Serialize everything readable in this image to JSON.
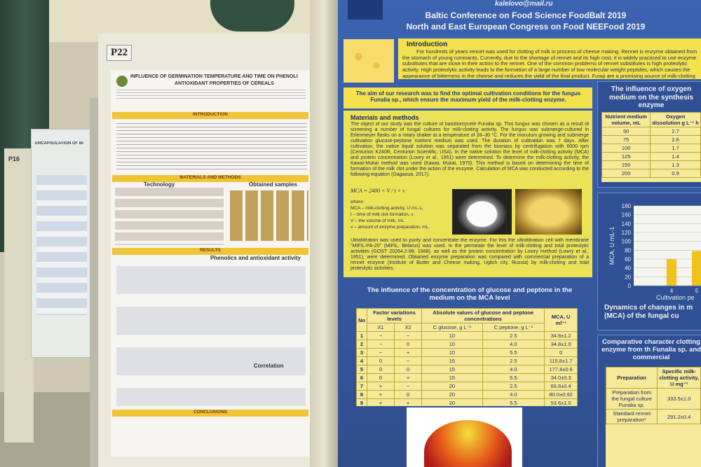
{
  "far_left_poster": {
    "label": "P16",
    "title": "ENCAPSULATION OF BI"
  },
  "left_poster": {
    "label": "P22",
    "title": "INFLUENCE OF GERMINATION TEMPERATURE AND TIME ON PHENOLI",
    "subtitle": "ANTIOXIDANT PROPERTIES OF CEREALS",
    "sections": [
      "INTRODUCTION",
      "MATERIALS AND METHODS",
      "RESULTS",
      "CONCLUSIONS"
    ],
    "subsections": [
      "Technology",
      "Obtained samples",
      "Phenolics and antioxidant activity",
      "Correlation"
    ]
  },
  "right_poster": {
    "email": "kalelovo@mail.ru",
    "conference": [
      "Baltic Conference on Food Science FoodBalt 2019",
      "North and East European Congress on Food NEEFood 2019"
    ],
    "introduction": {
      "heading": "Introduction",
      "text": "For hundreds of years rennet was used for clotting of milk in process of cheese making. Rennet is enzyme obtained from the stomach of young ruminants. Currently, due to the shortage of rennet and its high cost, it is widely practiced to use enzyme substitutes that are close in their action to the rennet. One of the common problems of rennet substitutes is high proteolytic activity. High proteolytic activity leads to the formation of a large number of low molecular weight peptides, which causes the appearance of bitterness in the cheese and reduces the yield of the final product. Fungi are a promising source of milk-clotting enzymes."
    },
    "aim": "The aim of our research was to find the optimal cultivation conditions for the fungus Funalia sp., which ensure the maximum yield of the milk-clotting enzyme.",
    "methods": {
      "heading": "Materials and methods",
      "text": "The object of our study was the culture of basidiomycete Funalia sp. This fungus was chosen as a result of screening a number of fungal cultures for milk-clotting activity. The fungus was submerge-cultured in Erlenmeyer flasks on a rotary shaker at a temperature of 28–30 °C. For the inoculum growing and submerge cultivation glucose-peptone nutrient medium was used. The duration of cultivation was 7 days. After cultivation, the native liquid solution was separated from the biomass by centrifugation with 6000 rpm (Centurion K240R, Centurion Scientific, USA). In the native solution the level of milk-clotting activity (MCA) and protein concentration (Lowry et al., 1951) were determined. To determine the milk-clotting activity, the Kawai-Mukai method was used (Kawai, Mukai, 1970). This method is based on determining the time of formation of the milk clot under the action of the enzyme. Calculation of MCA was conducted according to the following equation (Gagaoua, 2017):",
      "formula": "MCA = 2400 × V / t × v",
      "where": [
        "where:",
        "MCA – milk-clotting activity, U mL-1,",
        "t – time of milk clot formation, s",
        "V – the volume of milk, mL",
        "v – amount of enzyme preparation, mL."
      ],
      "text2": "Ultrafiltration was used to purify and concentrate the enzyme. For this the ultrafiltration cell with membrane \"MIFIL-PA-20\" (MIFIL, Belarus) was used. In the permeate the level of milk-clotting and total proteolytic activities (GOST 20264.2-88, 1988), as well as the protein concentration by Lowry method (Lowry et al., 1951), were determined. Obtained enzyme preparation was compared with commercial preparation of a rennet enzyme (Institute of Butter and Cheese making, Uglich city, Russia) by milk-clotting and total proteolytic activities."
    },
    "table1": {
      "title": "The influence of the concentration of glucose and peptone in the medium on the MCA level",
      "headers": [
        "No",
        "Factor variations levels",
        "Absolute values of glucose and peptone concentrations",
        "MCA, U ml⁻¹"
      ],
      "subheaders": [
        "X1",
        "X2",
        "C glucose, g L⁻¹",
        "C peptone, g L⁻¹"
      ],
      "rows": [
        [
          "1",
          "−",
          "−",
          "10",
          "2.5",
          "34.8±1.2"
        ],
        [
          "2",
          "−",
          "0",
          "10",
          "4.0",
          "34.8±1.0"
        ],
        [
          "3",
          "−",
          "+",
          "10",
          "5.5",
          "0"
        ],
        [
          "4",
          "0",
          "−",
          "15",
          "2.5",
          "115.8±1.7"
        ],
        [
          "5",
          "0",
          "0",
          "15",
          "4.0",
          "177.8±0.6"
        ],
        [
          "6",
          "0",
          "+",
          "15",
          "5.5",
          "34.0±0.3"
        ],
        [
          "7",
          "+",
          "−",
          "20",
          "2.5",
          "66.8±0.4"
        ],
        [
          "8",
          "+",
          "0",
          "20",
          "4.0",
          "80.0±0.92"
        ],
        [
          "9",
          "+",
          "+",
          "20",
          "5.5",
          "53.6±1.0"
        ]
      ]
    },
    "oxygen_panel": {
      "title": "The influence of oxygen medium on the synthesis enzyme",
      "headers": [
        "Nutrient medium volume, mL",
        "Oxygen dissolution g L⁻¹ h"
      ],
      "rows": [
        [
          "50",
          "2.7"
        ],
        [
          "75",
          "2.6"
        ],
        [
          "100",
          "1.7"
        ],
        [
          "125",
          "1.4"
        ],
        [
          "150",
          "1.3"
        ],
        [
          "200",
          "0.9"
        ]
      ]
    },
    "dynamics_chart": {
      "type": "bar",
      "ylabel": "MCA, U mL-1",
      "xlabel": "Cultivation pe",
      "categories": [
        "4",
        "5"
      ],
      "values": [
        60,
        78
      ],
      "color": "#f0c21c",
      "ylim": [
        0,
        180
      ],
      "yticks": [
        0,
        20,
        40,
        60,
        80,
        100,
        120,
        140,
        160,
        180
      ],
      "caption": "Dynamics of changes in m (MCA) of the fungal cu"
    },
    "comparative_panel": {
      "title": "Comparative character clotting enzyme from th Funalia sp. and commercial",
      "headers": [
        "Preparation",
        "Specific milk-clotting activity, U mg⁻¹"
      ],
      "rows": [
        [
          "Preparation from the fungal culture Funalia sp.",
          "333.5±1.0"
        ],
        [
          "Standard rennet preparation*",
          "291.2±0.4"
        ]
      ]
    }
  }
}
